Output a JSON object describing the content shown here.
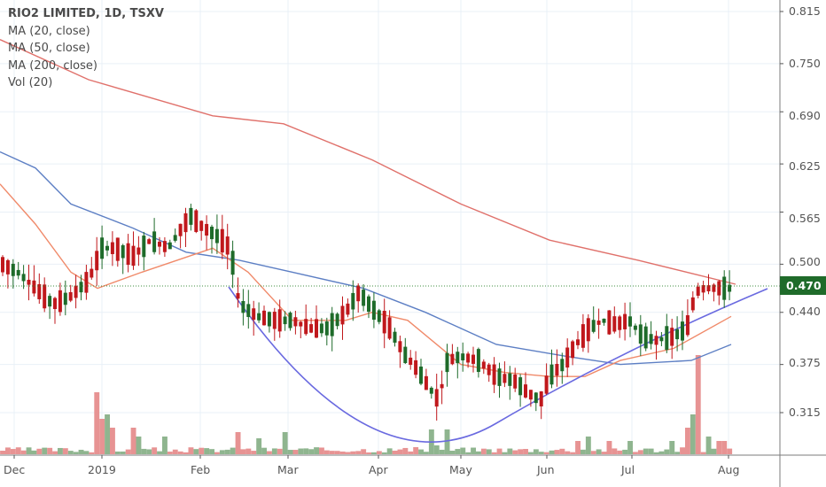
{
  "legend": {
    "title": "RIO2 LIMITED, 1D, TSXV",
    "items": [
      "MA (20, close)",
      "MA (50, close)",
      "MA (200, close)",
      "Vol (20)"
    ]
  },
  "price_axis": {
    "ticks": [
      "0.815",
      "0.750",
      "0.690",
      "0.625",
      "0.565",
      "0.500",
      "0.440",
      "0.375",
      "0.315"
    ],
    "last_price": "0.470"
  },
  "time_axis": {
    "ticks": [
      "Dec",
      "2019",
      "Feb",
      "Mar",
      "Apr",
      "May",
      "Jun",
      "Jul",
      "Aug"
    ]
  },
  "colors": {
    "up": "#1e6b2a",
    "down": "#c0181c",
    "vol_up": "#8fb58f",
    "vol_down": "#e79393",
    "ma20": "#f08a6a",
    "ma50": "#5d7fc4",
    "ma200": "#e0716b",
    "arc": "#6a6ae0",
    "grid": "#e9f0f7",
    "last_line": "#3f8c3f",
    "badge": "#1f6b2a"
  },
  "chart_data": {
    "type": "candlestick",
    "title": "RIO2 LIMITED, 1D, TSXV",
    "xlabel": "",
    "ylabel": "",
    "ylim": [
      0.28,
      0.83
    ],
    "x_ticks": [
      "Dec",
      "2019",
      "Feb",
      "Mar",
      "Apr",
      "May",
      "Jun",
      "Jul",
      "Aug"
    ],
    "y_ticks": [
      0.815,
      0.75,
      0.69,
      0.625,
      0.565,
      0.5,
      0.44,
      0.375,
      0.315
    ],
    "last_price": 0.47,
    "indicators": [
      "MA (20, close)",
      "MA (50, close)",
      "MA (200, close)",
      "Vol (20)"
    ],
    "series": [
      {
        "name": "MA (200, close)",
        "approx_points": [
          [
            0,
            0.78
          ],
          [
            100,
            0.73
          ],
          [
            240,
            0.685
          ],
          [
            320,
            0.675
          ],
          [
            420,
            0.63
          ],
          [
            520,
            0.575
          ],
          [
            620,
            0.53
          ],
          [
            720,
            0.505
          ],
          [
            830,
            0.475
          ]
        ]
      },
      {
        "name": "MA (50, close)",
        "approx_points": [
          [
            0,
            0.64
          ],
          [
            40,
            0.62
          ],
          [
            80,
            0.575
          ],
          [
            150,
            0.545
          ],
          [
            210,
            0.515
          ],
          [
            270,
            0.505
          ],
          [
            330,
            0.49
          ],
          [
            410,
            0.47
          ],
          [
            480,
            0.44
          ],
          [
            560,
            0.4
          ],
          [
            640,
            0.385
          ],
          [
            700,
            0.375
          ],
          [
            780,
            0.38
          ],
          [
            825,
            0.4
          ]
        ]
      },
      {
        "name": "MA (20, close)",
        "approx_points": [
          [
            0,
            0.6
          ],
          [
            40,
            0.55
          ],
          [
            80,
            0.49
          ],
          [
            110,
            0.47
          ],
          [
            160,
            0.49
          ],
          [
            240,
            0.52
          ],
          [
            280,
            0.49
          ],
          [
            330,
            0.43
          ],
          [
            390,
            0.43
          ],
          [
            420,
            0.44
          ],
          [
            460,
            0.43
          ],
          [
            520,
            0.375
          ],
          [
            570,
            0.365
          ],
          [
            620,
            0.36
          ],
          [
            660,
            0.36
          ],
          [
            700,
            0.38
          ],
          [
            760,
            0.395
          ],
          [
            825,
            0.435
          ]
        ]
      }
    ],
    "notes": "Drawn cup/arc trendline from Feb low area down to ~0.30 in May and up to ~0.46 at Aug; high volume spike late Jul."
  }
}
